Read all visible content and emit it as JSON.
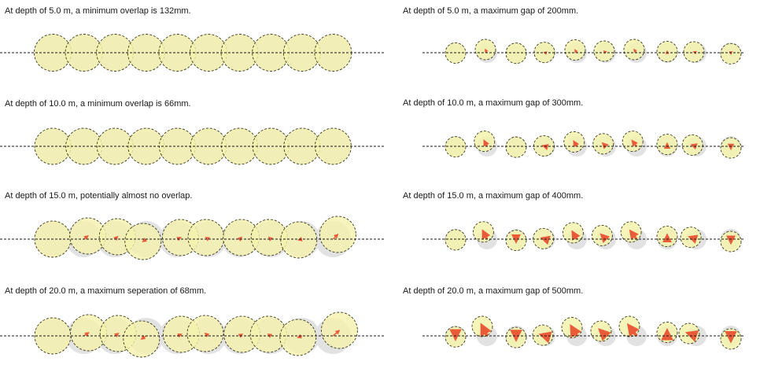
{
  "colors": {
    "ghost_fill": "#e2e2e2",
    "circle_fill": "#f5f3ad",
    "circle_stroke": "#3d3d1e",
    "arrow": "#ea5b3a",
    "baseline": "#1a1a1a"
  },
  "left_panels": [
    {
      "label": "At depth of 5.0 m, a minimum overlap is 132mm."
    },
    {
      "label": "At depth of 10.0 m, a minimum overlap is 66mm."
    },
    {
      "label": "At depth of 15.0 m, potentially almost no overlap."
    },
    {
      "label": "At depth of 20.0 m, a maximum seperation of 68mm."
    }
  ],
  "right_panels": [
    {
      "label": "At depth of 5.0 m, a maximum gap of 200mm."
    },
    {
      "label": "At depth of 10.0 m, a maximum gap of 300mm."
    },
    {
      "label": "At depth of 15.0 m, a maximum gap of 400mm."
    },
    {
      "label": "At depth of 20.0 m, a maximum gap of 500mm."
    }
  ]
}
